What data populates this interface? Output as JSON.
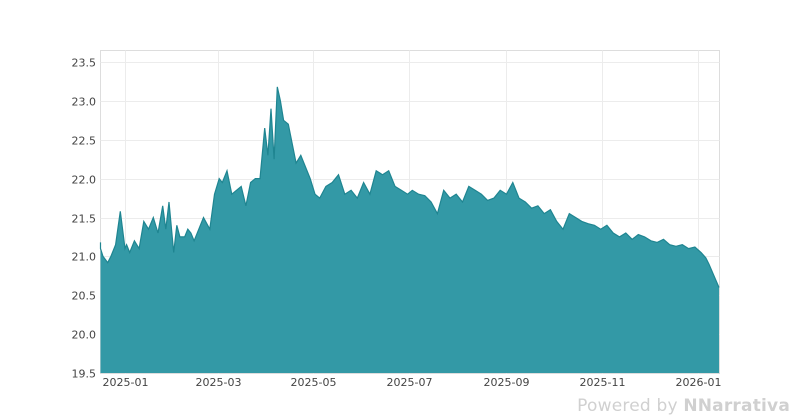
{
  "chart_data": {
    "type": "area",
    "title": "",
    "xlabel": "",
    "ylabel": "",
    "ylim": [
      19.5,
      23.55
    ],
    "xlim": [
      "2024-12-12",
      "2026-01-10"
    ],
    "grid": true,
    "legend": null,
    "fill_color": "#3399a6",
    "line_color": "#1f8591",
    "y_ticks": [
      "19.5",
      "20.0",
      "20.5",
      "21.0",
      "21.5",
      "22.0",
      "22.5",
      "23.0",
      "23.5"
    ],
    "x_ticks": [
      "2025-01",
      "2025-03",
      "2025-05",
      "2025-07",
      "2025-09",
      "2025-11",
      "2026-01"
    ],
    "x": [
      "2024-12-12",
      "2024-12-15",
      "2024-12-18",
      "2024-12-21",
      "2024-12-23",
      "2024-12-26",
      "2024-12-29",
      "2025-01-01",
      "2025-01-02",
      "2025-01-04",
      "2025-01-07",
      "2025-01-10",
      "2025-01-13",
      "2025-01-16",
      "2025-01-19",
      "2025-01-22",
      "2025-01-25",
      "2025-01-27",
      "2025-01-29",
      "2025-02-01",
      "2025-02-03",
      "2025-02-05",
      "2025-02-08",
      "2025-02-10",
      "2025-02-12",
      "2025-02-14",
      "2025-02-17",
      "2025-02-20",
      "2025-02-24",
      "2025-02-27",
      "2025-03-02",
      "2025-03-04",
      "2025-03-07",
      "2025-03-10",
      "2025-03-13",
      "2025-03-16",
      "2025-03-19",
      "2025-03-22",
      "2025-03-25",
      "2025-03-28",
      "2025-03-31",
      "2025-04-02",
      "2025-04-04",
      "2025-04-06",
      "2025-04-08",
      "2025-04-10",
      "2025-04-12",
      "2025-04-15",
      "2025-04-20",
      "2025-04-23",
      "2025-04-26",
      "2025-04-29",
      "2025-05-02",
      "2025-05-05",
      "2025-05-09",
      "2025-05-13",
      "2025-05-17",
      "2025-05-21",
      "2025-05-25",
      "2025-05-29",
      "2025-06-02",
      "2025-06-06",
      "2025-06-10",
      "2025-06-14",
      "2025-06-18",
      "2025-06-22",
      "2025-06-26",
      "2025-06-30",
      "2025-07-03",
      "2025-07-07",
      "2025-07-11",
      "2025-07-15",
      "2025-07-19",
      "2025-07-23",
      "2025-07-27",
      "2025-07-31",
      "2025-08-04",
      "2025-08-08",
      "2025-08-12",
      "2025-08-16",
      "2025-08-20",
      "2025-08-24",
      "2025-08-28",
      "2025-09-01",
      "2025-09-05",
      "2025-09-09",
      "2025-09-13",
      "2025-09-17",
      "2025-09-21",
      "2025-09-25",
      "2025-09-29",
      "2025-10-03",
      "2025-10-07",
      "2025-10-11",
      "2025-10-15",
      "2025-10-19",
      "2025-10-23",
      "2025-10-27",
      "2025-10-31",
      "2025-11-04",
      "2025-11-08",
      "2025-11-12",
      "2025-11-16",
      "2025-11-20",
      "2025-11-24",
      "2025-11-28",
      "2025-12-02",
      "2025-12-06",
      "2025-12-10",
      "2025-12-14",
      "2025-12-18",
      "2025-12-22",
      "2025-12-26",
      "2025-12-30",
      "2026-01-03",
      "2026-01-06",
      "2026-01-08",
      "2026-01-10"
    ],
    "values": [
      21.18,
      21.1,
      21.0,
      20.92,
      21.0,
      21.15,
      21.58,
      21.1,
      21.15,
      21.05,
      21.2,
      21.1,
      21.45,
      21.35,
      21.5,
      21.3,
      21.65,
      21.35,
      21.7,
      21.05,
      21.4,
      21.25,
      21.25,
      21.35,
      21.3,
      21.2,
      21.35,
      21.5,
      21.35,
      21.8,
      22.0,
      21.95,
      22.1,
      21.8,
      21.85,
      21.9,
      21.65,
      21.95,
      22.0,
      22.0,
      22.65,
      22.3,
      22.9,
      22.25,
      23.18,
      23.0,
      22.75,
      22.7,
      22.2,
      22.3,
      22.15,
      22.0,
      21.8,
      21.75,
      21.9,
      21.95,
      22.05,
      21.8,
      21.85,
      21.75,
      21.95,
      21.8,
      22.1,
      22.05,
      22.1,
      21.9,
      21.85,
      21.8,
      21.85,
      21.8,
      21.78,
      21.7,
      21.55,
      21.85,
      21.75,
      21.8,
      21.7,
      21.9,
      21.85,
      21.8,
      21.72,
      21.75,
      21.85,
      21.8,
      21.95,
      21.75,
      21.7,
      21.62,
      21.65,
      21.55,
      21.6,
      21.45,
      21.35,
      21.55,
      21.5,
      21.45,
      21.42,
      21.4,
      21.35,
      21.4,
      21.3,
      21.25,
      21.3,
      21.22,
      21.28,
      21.25,
      21.2,
      21.18,
      21.22,
      21.15,
      21.13,
      21.15,
      21.1,
      21.12,
      21.05,
      20.98,
      20.9,
      20.6
    ]
  },
  "watermark": {
    "prefix": "Powered by",
    "brand": "Narrativa",
    "logo_glyph": "N"
  }
}
